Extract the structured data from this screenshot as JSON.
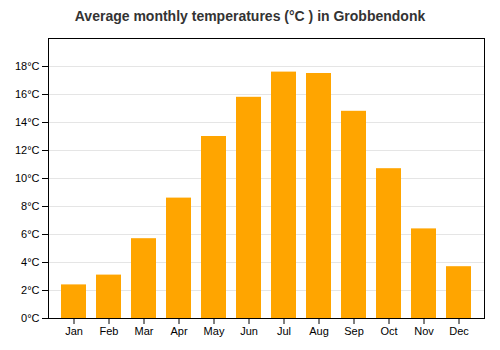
{
  "chart_data": {
    "type": "bar",
    "title": "Average monthly temperatures (°C ) in Grobbendonk",
    "categories": [
      "Jan",
      "Feb",
      "Mar",
      "Apr",
      "May",
      "Jun",
      "Jul",
      "Aug",
      "Sep",
      "Oct",
      "Nov",
      "Dec"
    ],
    "values": [
      2.4,
      3.1,
      5.7,
      8.6,
      13.0,
      15.8,
      17.6,
      17.5,
      14.8,
      10.7,
      6.4,
      3.7
    ],
    "color": "#FFA500",
    "ylim": [
      0,
      20
    ],
    "yticks": [
      {
        "value": 0,
        "label": "0°C"
      },
      {
        "value": 2,
        "label": "2°C"
      },
      {
        "value": 4,
        "label": "4°C"
      },
      {
        "value": 6,
        "label": "6°C"
      },
      {
        "value": 8,
        "label": "8°C"
      },
      {
        "value": 10,
        "label": "10°C"
      },
      {
        "value": 12,
        "label": "12°C"
      },
      {
        "value": 14,
        "label": "14°C"
      },
      {
        "value": 16,
        "label": "16°C"
      },
      {
        "value": 18,
        "label": "18°C"
      }
    ],
    "grid": true
  }
}
